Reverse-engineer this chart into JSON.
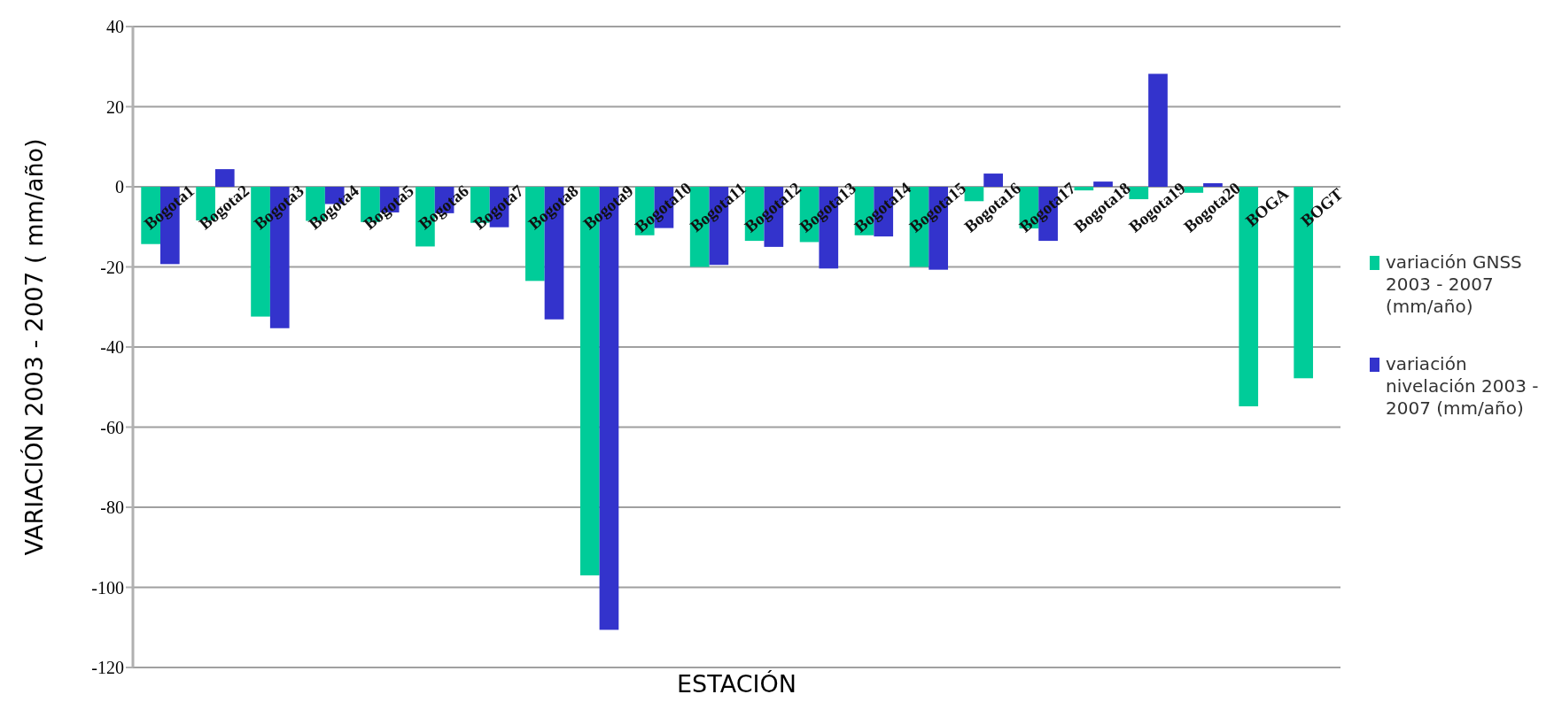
{
  "chart_data": {
    "type": "bar",
    "xlabel": "ESTACIÓN",
    "ylabel": "VARIACIÓN 2003 - 2007 ( mm/año)",
    "categories": [
      "Bogota1",
      "Bogota2",
      "Bogota3",
      "Bogota4",
      "Bogota5",
      "Bogota6",
      "Bogota7",
      "Bogota8",
      "Bogota9",
      "Bogota10",
      "Bogota11",
      "Bogota12",
      "Bogota13",
      "Bogota14",
      "Bogota15",
      "Bogota16",
      "Bogota17",
      "Bogota18",
      "Bogota19",
      "Bogota20",
      "BOGA",
      "BOGT"
    ],
    "series": [
      {
        "name": "variación GNSS 2003 - 2007 (mm/año)",
        "color": "#00cc99",
        "values": [
          -14.3,
          -8.4,
          -32.4,
          -8.5,
          -8.8,
          -14.9,
          -9,
          -23.5,
          -97,
          -12.1,
          -20,
          -13.5,
          -13.8,
          -12.1,
          -20,
          -3.6,
          -10.4,
          -0.9,
          -3.1,
          -1.5,
          -54.8,
          -47.8
        ]
      },
      {
        "name": "variación nivelación 2003 - 2007 (mm/año)",
        "color": "#3333cc",
        "values": [
          -19.3,
          4.4,
          -35.3,
          -4.3,
          -6.4,
          -6.6,
          -10.1,
          -33.1,
          -110.6,
          -10.3,
          -19.5,
          -15,
          -20.4,
          -12.4,
          -20.7,
          3.3,
          -13.5,
          1.3,
          28.2,
          0.9,
          null,
          null
        ]
      }
    ],
    "ylim": [
      -120,
      40
    ],
    "yticks": [
      -120,
      -100,
      -80,
      -60,
      -40,
      -20,
      0,
      20,
      40
    ],
    "grid": "y",
    "legend": "right"
  }
}
